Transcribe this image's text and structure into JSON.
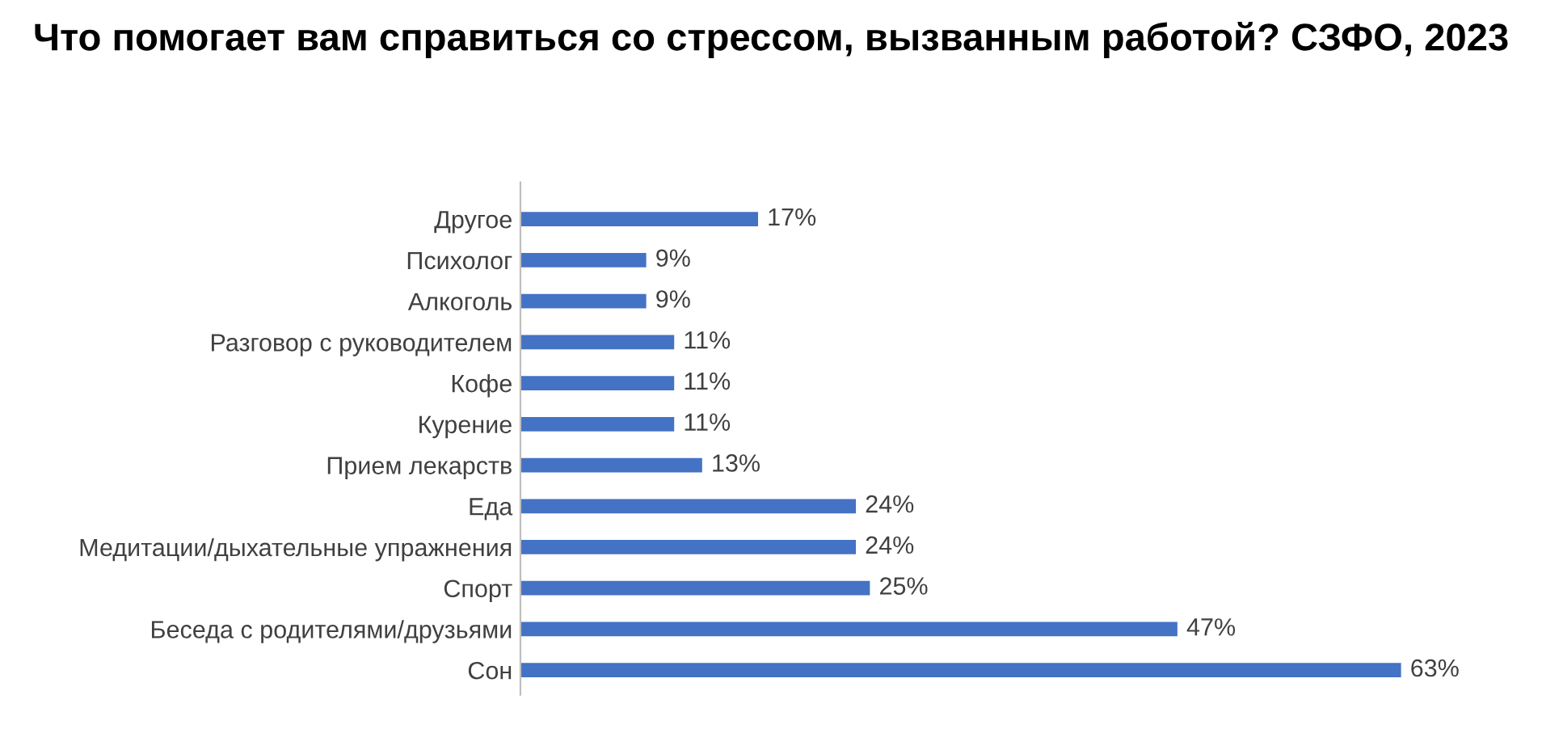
{
  "chart_data": {
    "type": "bar",
    "orientation": "horizontal",
    "title": "Что помогает вам справиться со стрессом, вызванным работой? СЗФО, 2023",
    "categories": [
      "Другое",
      "Психолог",
      "Алкоголь",
      "Разговор с руководителем",
      "Кофе",
      "Курение",
      "Прием лекарств",
      "Еда",
      "Медитации/дыхательные упражнения",
      "Спорт",
      "Беседа с родителями/друзьями",
      "Сон"
    ],
    "values": [
      17,
      9,
      9,
      11,
      11,
      11,
      13,
      24,
      24,
      25,
      47,
      63
    ],
    "value_labels": [
      "17%",
      "9%",
      "9%",
      "11%",
      "11%",
      "11%",
      "13%",
      "24%",
      "24%",
      "25%",
      "47%",
      "63%"
    ],
    "color": "#4472c4",
    "grid": false,
    "legend": false
  }
}
